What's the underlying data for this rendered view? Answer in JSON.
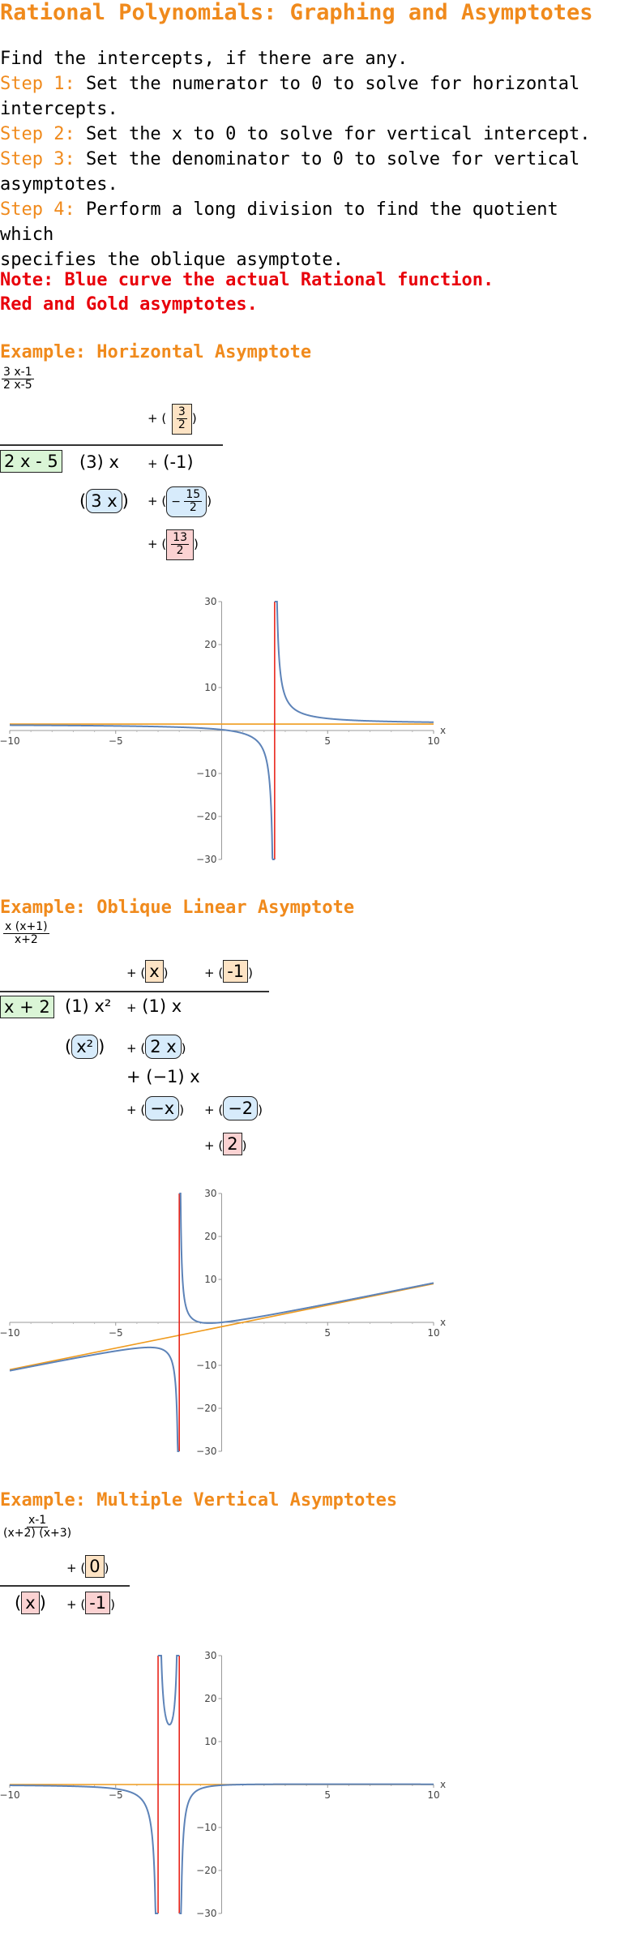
{
  "page": {
    "title": "Rational Polynomials: Graphing and Asymptotes",
    "intro": "Find the intercepts, if there are any.",
    "steps": [
      {
        "label": "Step 1:",
        "text": " Set the numerator to 0 to solve for horizontal",
        "text2": "intercepts."
      },
      {
        "label": "Step 2:",
        "text": " Set the x to 0 to solve for vertical intercept.",
        "text2": ""
      },
      {
        "label": "Step 3:",
        "text": " Set the denominator to 0 to solve for vertical",
        "text2": "asymptotes."
      },
      {
        "label": "Step 4:",
        "text": " Perform a long division to find the quotient which",
        "text2": "specifies the oblique asymptote."
      }
    ],
    "note1": "Note: Blue curve the actual Rational function.",
    "note2": "Red and Gold asymptotes."
  },
  "colors": {
    "accent": "#f08a1c",
    "note": "#e8000b",
    "curve": "#5d83b8",
    "asymptote_red": "#e8261c",
    "asymptote_gold": "#ef9b1e"
  },
  "examples": [
    {
      "heading": "Example: Horizontal Asymptote",
      "fn_num": "3 x-1",
      "fn_den": "2 x-5",
      "quot": [
        "+",
        "(",
        "3",
        "2",
        ")"
      ],
      "divisor": "2 x - 5",
      "dividend": [
        "(3)",
        "x",
        "+",
        "(-1)"
      ],
      "sub1_lead": "(",
      "sub1_box": "3 x",
      "sub1_end": ")",
      "sub1b_num": "15",
      "sub1b_den": "2",
      "sub1b_sign": "−",
      "rem_num": "13",
      "rem_den": "2",
      "chart_data": {
        "type": "line",
        "title": "",
        "xlabel": "x",
        "ylabel": "",
        "xlim": [
          -10,
          10
        ],
        "ylim": [
          -30,
          30
        ],
        "xticks": [
          "−10",
          "−5",
          "5",
          "10"
        ],
        "yticks": [
          "30",
          "20",
          "10",
          "−10",
          "−20",
          "−30"
        ],
        "function": "(3x-1)/(2x-5)",
        "vertical_asymptotes": [
          2.5
        ],
        "horizontal_asymptote": 1.5,
        "oblique_asymptote": null
      }
    },
    {
      "heading": "Example: Oblique Linear Asymptote",
      "fn_num": "x (x+1)",
      "fn_den": "x+2",
      "quot1": "x",
      "quot2": "-1",
      "divisor": "x + 2",
      "row1": [
        "(1)",
        "x²",
        "+",
        "(1)",
        "x"
      ],
      "row2_box": "x²",
      "row2_second": "2 x",
      "row3": "+ (−1) x",
      "row4_a": "−x",
      "row4_b": "−2",
      "rem": "2",
      "chart_data": {
        "type": "line",
        "title": "",
        "xlabel": "x",
        "ylabel": "",
        "xlim": [
          -10,
          10
        ],
        "ylim": [
          -30,
          30
        ],
        "xticks": [
          "−10",
          "−5",
          "5",
          "10"
        ],
        "yticks": [
          "30",
          "20",
          "10",
          "−10",
          "−20",
          "−30"
        ],
        "function": "x(x+1)/(x+2)",
        "vertical_asymptotes": [
          -2
        ],
        "horizontal_asymptote": null,
        "oblique_asymptote": {
          "slope": 1,
          "intercept": -1
        }
      }
    },
    {
      "heading": "Example: Multiple Vertical Asymptotes",
      "fn_num": "x-1",
      "fn_den": "(x+2) (x+3)",
      "quot": "0",
      "row_a": "x",
      "row_b": "-1",
      "chart_data": {
        "type": "line",
        "title": "",
        "xlabel": "x",
        "ylabel": "",
        "xlim": [
          -10,
          10
        ],
        "ylim": [
          -30,
          30
        ],
        "xticks": [
          "−10",
          "−5",
          "5",
          "10"
        ],
        "yticks": [
          "30",
          "20",
          "10",
          "−10",
          "−20",
          "−30"
        ],
        "function": "(x-1)/((x+2)(x+3))",
        "vertical_asymptotes": [
          -3,
          -2
        ],
        "horizontal_asymptote": 0,
        "oblique_asymptote": null
      }
    }
  ]
}
